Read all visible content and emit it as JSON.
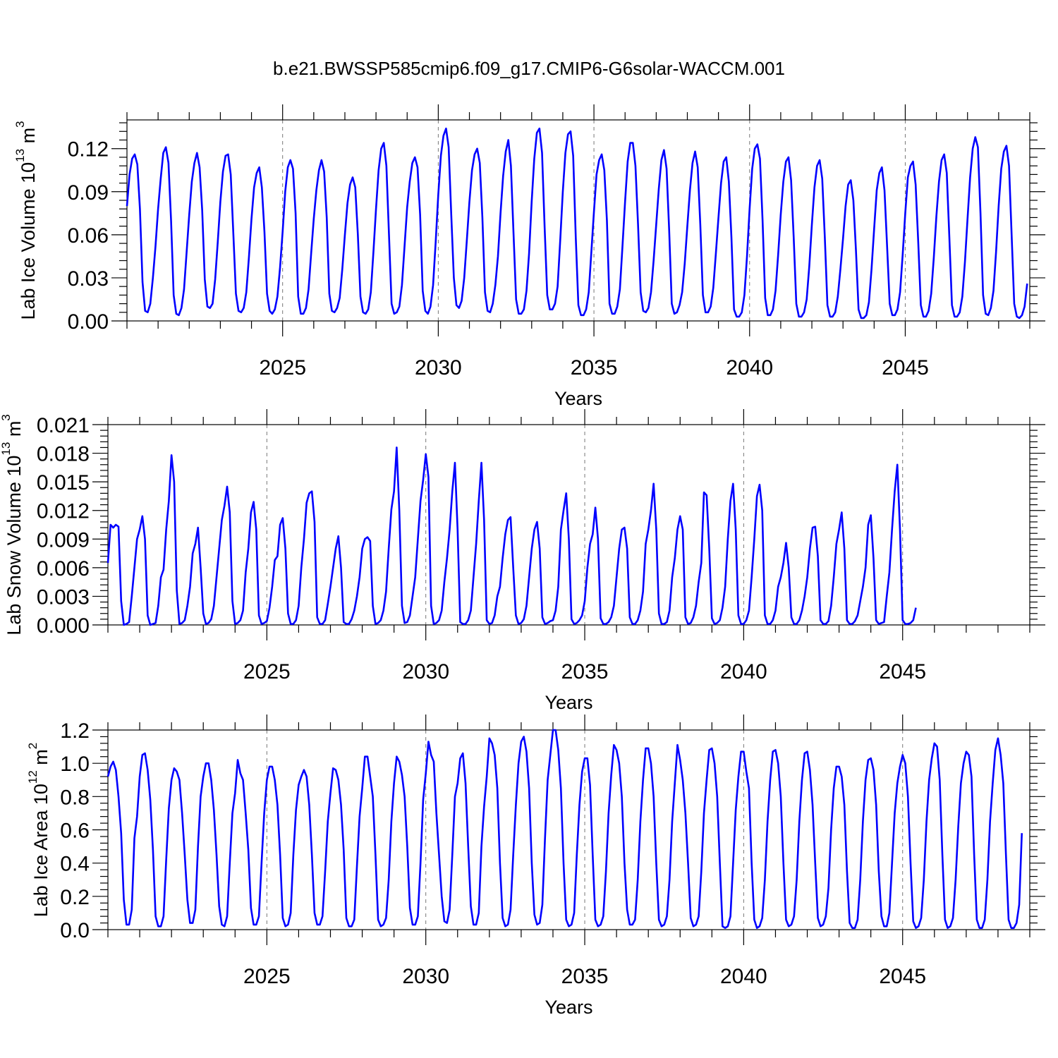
{
  "title": "b.e21.BWSSP585cmip6.f09_g17.CMIP6-G6solar-WACCM.001",
  "colors": {
    "series": "#0000ff",
    "axis": "#000000",
    "grid": "#777777"
  },
  "chart_data": [
    {
      "type": "line",
      "ylabel": "Lab Ice Volume 10^13 m^3",
      "ylabel_parts": {
        "main": "Lab Ice Volume 10",
        "exp": "13",
        "unit": " m",
        "unit_exp": "3"
      },
      "xlabel": "Years",
      "xlim": [
        2020.0,
        2049.0
      ],
      "ylim": [
        0,
        0.14
      ],
      "xticks": [
        2025,
        2030,
        2035,
        2040,
        2045
      ],
      "xtick_labels": [
        "2025",
        "2030",
        "2035",
        "2040",
        "2045"
      ],
      "yticks": [
        0.0,
        0.03,
        0.06,
        0.09,
        0.12
      ],
      "ytick_labels": [
        "0.00",
        "0.03",
        "0.06",
        "0.09",
        "0.12"
      ],
      "grid": "vertical dashed at major x ticks",
      "x_start": 2020.0,
      "x_step": 0.0833333,
      "values": [
        0.08,
        0.102,
        0.113,
        0.116,
        0.109,
        0.078,
        0.027,
        0.007,
        0.006,
        0.012,
        0.03,
        0.052,
        0.078,
        0.099,
        0.117,
        0.121,
        0.11,
        0.07,
        0.018,
        0.005,
        0.004,
        0.009,
        0.022,
        0.048,
        0.074,
        0.097,
        0.11,
        0.117,
        0.107,
        0.077,
        0.029,
        0.01,
        0.009,
        0.012,
        0.029,
        0.055,
        0.083,
        0.104,
        0.115,
        0.116,
        0.102,
        0.061,
        0.019,
        0.007,
        0.006,
        0.009,
        0.02,
        0.044,
        0.071,
        0.093,
        0.103,
        0.107,
        0.093,
        0.062,
        0.019,
        0.007,
        0.005,
        0.008,
        0.017,
        0.037,
        0.062,
        0.09,
        0.107,
        0.112,
        0.106,
        0.075,
        0.017,
        0.005,
        0.005,
        0.009,
        0.022,
        0.047,
        0.071,
        0.091,
        0.105,
        0.112,
        0.104,
        0.072,
        0.019,
        0.007,
        0.006,
        0.009,
        0.016,
        0.036,
        0.06,
        0.082,
        0.095,
        0.1,
        0.093,
        0.06,
        0.017,
        0.006,
        0.005,
        0.008,
        0.02,
        0.048,
        0.078,
        0.105,
        0.12,
        0.124,
        0.108,
        0.06,
        0.012,
        0.005,
        0.006,
        0.01,
        0.025,
        0.052,
        0.079,
        0.097,
        0.11,
        0.114,
        0.107,
        0.074,
        0.021,
        0.007,
        0.005,
        0.01,
        0.025,
        0.055,
        0.088,
        0.115,
        0.129,
        0.134,
        0.121,
        0.074,
        0.03,
        0.011,
        0.009,
        0.014,
        0.03,
        0.056,
        0.083,
        0.105,
        0.116,
        0.12,
        0.11,
        0.072,
        0.02,
        0.007,
        0.006,
        0.012,
        0.025,
        0.045,
        0.075,
        0.101,
        0.118,
        0.126,
        0.108,
        0.061,
        0.015,
        0.005,
        0.005,
        0.008,
        0.021,
        0.047,
        0.083,
        0.113,
        0.131,
        0.134,
        0.117,
        0.065,
        0.018,
        0.008,
        0.008,
        0.012,
        0.024,
        0.056,
        0.09,
        0.117,
        0.13,
        0.132,
        0.115,
        0.058,
        0.011,
        0.004,
        0.004,
        0.008,
        0.02,
        0.048,
        0.076,
        0.102,
        0.112,
        0.116,
        0.105,
        0.07,
        0.012,
        0.005,
        0.005,
        0.01,
        0.022,
        0.052,
        0.083,
        0.111,
        0.124,
        0.124,
        0.108,
        0.067,
        0.02,
        0.007,
        0.006,
        0.009,
        0.02,
        0.042,
        0.067,
        0.092,
        0.112,
        0.119,
        0.106,
        0.063,
        0.012,
        0.005,
        0.006,
        0.011,
        0.02,
        0.04,
        0.066,
        0.091,
        0.11,
        0.118,
        0.107,
        0.067,
        0.018,
        0.006,
        0.006,
        0.01,
        0.023,
        0.047,
        0.072,
        0.096,
        0.111,
        0.114,
        0.097,
        0.058,
        0.008,
        0.003,
        0.003,
        0.006,
        0.018,
        0.045,
        0.078,
        0.106,
        0.12,
        0.123,
        0.113,
        0.07,
        0.016,
        0.004,
        0.004,
        0.008,
        0.021,
        0.046,
        0.074,
        0.097,
        0.111,
        0.114,
        0.098,
        0.058,
        0.012,
        0.003,
        0.003,
        0.006,
        0.015,
        0.038,
        0.067,
        0.093,
        0.108,
        0.112,
        0.099,
        0.058,
        0.011,
        0.003,
        0.003,
        0.006,
        0.017,
        0.036,
        0.057,
        0.08,
        0.095,
        0.098,
        0.084,
        0.049,
        0.008,
        0.002,
        0.002,
        0.004,
        0.013,
        0.036,
        0.064,
        0.091,
        0.103,
        0.107,
        0.091,
        0.052,
        0.012,
        0.004,
        0.004,
        0.008,
        0.02,
        0.046,
        0.075,
        0.1,
        0.108,
        0.111,
        0.095,
        0.055,
        0.011,
        0.003,
        0.003,
        0.007,
        0.019,
        0.044,
        0.073,
        0.097,
        0.112,
        0.116,
        0.103,
        0.058,
        0.011,
        0.003,
        0.003,
        0.006,
        0.017,
        0.041,
        0.071,
        0.1,
        0.12,
        0.128,
        0.121,
        0.075,
        0.018,
        0.005,
        0.004,
        0.009,
        0.021,
        0.048,
        0.08,
        0.106,
        0.118,
        0.122,
        0.108,
        0.06,
        0.012,
        0.003,
        0.002,
        0.004,
        0.01,
        0.026
      ]
    },
    {
      "type": "line",
      "ylabel": "Lab Snow Volume 10^13 m^3",
      "ylabel_parts": {
        "main": "Lab Snow Volume 10",
        "exp": "13",
        "unit": " m",
        "unit_exp": "3"
      },
      "xlabel": "Years",
      "xlim": [
        2020.0,
        2049.0
      ],
      "ylim": [
        0,
        0.021
      ],
      "xticks": [
        2025,
        2030,
        2035,
        2040,
        2045
      ],
      "xtick_labels": [
        "2025",
        "2030",
        "2035",
        "2040",
        "2045"
      ],
      "yticks": [
        0.0,
        0.003,
        0.006,
        0.009,
        0.012,
        0.015,
        0.018,
        0.021
      ],
      "ytick_labels": [
        "0.000",
        "0.003",
        "0.006",
        "0.009",
        "0.012",
        "0.015",
        "0.018",
        "0.021"
      ],
      "grid": "vertical dashed at major x ticks",
      "x_start": 2020.0,
      "x_step": 0.0833333,
      "values": [
        0.0065,
        0.0105,
        0.0102,
        0.0105,
        0.0103,
        0.0025,
        0.0,
        0.0001,
        0.0003,
        0.003,
        0.006,
        0.009,
        0.01,
        0.0114,
        0.009,
        0.001,
        0.0,
        0.0001,
        0.0002,
        0.002,
        0.005,
        0.0058,
        0.01,
        0.013,
        0.0178,
        0.015,
        0.0036,
        0.0001,
        0.0002,
        0.0005,
        0.002,
        0.004,
        0.0075,
        0.0085,
        0.0102,
        0.006,
        0.0012,
        0.0001,
        0.0002,
        0.0006,
        0.002,
        0.005,
        0.008,
        0.011,
        0.0125,
        0.0145,
        0.0118,
        0.0025,
        0.0001,
        0.0002,
        0.0005,
        0.0015,
        0.0055,
        0.008,
        0.0118,
        0.0129,
        0.01,
        0.001,
        0.0001,
        0.0002,
        0.0004,
        0.0018,
        0.004,
        0.0068,
        0.0072,
        0.0105,
        0.0112,
        0.008,
        0.0012,
        0.0001,
        0.0001,
        0.0005,
        0.002,
        0.006,
        0.009,
        0.0128,
        0.0138,
        0.014,
        0.0108,
        0.0008,
        0.0001,
        0.0001,
        0.0005,
        0.0022,
        0.004,
        0.006,
        0.008,
        0.0093,
        0.006,
        0.0003,
        0.0001,
        0.0001,
        0.0006,
        0.0015,
        0.003,
        0.005,
        0.008,
        0.009,
        0.0092,
        0.0088,
        0.002,
        0.0001,
        0.0002,
        0.0005,
        0.0015,
        0.0035,
        0.008,
        0.0121,
        0.014,
        0.0186,
        0.012,
        0.002,
        0.0002,
        0.0003,
        0.001,
        0.003,
        0.005,
        0.009,
        0.013,
        0.0152,
        0.0179,
        0.0155,
        0.002,
        0.0001,
        0.0002,
        0.0005,
        0.0015,
        0.0045,
        0.007,
        0.01,
        0.014,
        0.017,
        0.01,
        0.0003,
        0.0001,
        0.0001,
        0.0005,
        0.0015,
        0.005,
        0.0085,
        0.013,
        0.017,
        0.011,
        0.0005,
        0.0001,
        0.0002,
        0.001,
        0.003,
        0.004,
        0.007,
        0.0095,
        0.011,
        0.0113,
        0.006,
        0.001,
        0.0001,
        0.0002,
        0.0006,
        0.002,
        0.005,
        0.008,
        0.01,
        0.0108,
        0.008,
        0.0008,
        0.0001,
        0.0002,
        0.0004,
        0.0005,
        0.0015,
        0.004,
        0.01,
        0.012,
        0.0138,
        0.009,
        0.0006,
        0.0001,
        0.0002,
        0.0005,
        0.001,
        0.0025,
        0.006,
        0.0085,
        0.0095,
        0.0123,
        0.009,
        0.0007,
        0.0001,
        0.0001,
        0.0003,
        0.0008,
        0.002,
        0.005,
        0.008,
        0.01,
        0.0102,
        0.008,
        0.0008,
        0.0001,
        0.0001,
        0.0005,
        0.0015,
        0.0035,
        0.0085,
        0.01,
        0.012,
        0.0148,
        0.01,
        0.0012,
        0.0001,
        0.0001,
        0.0003,
        0.0015,
        0.005,
        0.007,
        0.01,
        0.0114,
        0.01,
        0.0008,
        0.0001,
        0.0002,
        0.0008,
        0.002,
        0.0045,
        0.0065,
        0.0139,
        0.0136,
        0.008,
        0.0007,
        0.0001,
        0.0002,
        0.0005,
        0.0018,
        0.004,
        0.009,
        0.013,
        0.0148,
        0.01,
        0.001,
        0.0001,
        0.0001,
        0.0005,
        0.0015,
        0.005,
        0.009,
        0.0135,
        0.0147,
        0.012,
        0.001,
        0.0001,
        0.0001,
        0.0005,
        0.0015,
        0.004,
        0.005,
        0.0065,
        0.0086,
        0.006,
        0.0008,
        0.0001,
        0.0001,
        0.0005,
        0.0015,
        0.003,
        0.005,
        0.008,
        0.0102,
        0.0103,
        0.0072,
        0.0005,
        0.0001,
        0.0001,
        0.0004,
        0.002,
        0.005,
        0.0085,
        0.01,
        0.0118,
        0.008,
        0.0005,
        0.0001,
        0.0001,
        0.0004,
        0.001,
        0.0025,
        0.004,
        0.006,
        0.0105,
        0.0115,
        0.007,
        0.0005,
        0.0001,
        0.0002,
        0.0003,
        0.003,
        0.0055,
        0.01,
        0.014,
        0.0168,
        0.01,
        0.0005,
        0.0001,
        0.0001,
        0.0002,
        0.0005,
        0.0018
      ]
    },
    {
      "type": "line",
      "ylabel": "Lab Ice Area 10^12 m^2",
      "ylabel_parts": {
        "main": "Lab Ice Area 10",
        "exp": "12",
        "unit": " m",
        "unit_exp": "2"
      },
      "xlabel": "Years",
      "xlim": [
        2020.0,
        2049.0
      ],
      "ylim": [
        0,
        1.2
      ],
      "xticks": [
        2025,
        2030,
        2035,
        2040,
        2045
      ],
      "xtick_labels": [
        "2025",
        "2030",
        "2035",
        "2040",
        "2045"
      ],
      "yticks": [
        0.0,
        0.2,
        0.4,
        0.6,
        0.8,
        1.0,
        1.2
      ],
      "ytick_labels": [
        "0.0",
        "0.2",
        "0.4",
        "0.6",
        "0.8",
        "1.0",
        "1.2"
      ],
      "grid": "vertical dashed at major x ticks",
      "x_start": 2020.0,
      "x_step": 0.0833333,
      "values": [
        0.92,
        0.98,
        1.01,
        0.96,
        0.8,
        0.58,
        0.18,
        0.03,
        0.03,
        0.12,
        0.55,
        0.68,
        0.92,
        1.05,
        1.06,
        0.96,
        0.78,
        0.48,
        0.08,
        0.02,
        0.02,
        0.08,
        0.42,
        0.73,
        0.9,
        0.97,
        0.95,
        0.9,
        0.7,
        0.45,
        0.18,
        0.04,
        0.04,
        0.12,
        0.5,
        0.8,
        0.92,
        1.0,
        1.0,
        0.9,
        0.72,
        0.45,
        0.14,
        0.03,
        0.02,
        0.08,
        0.4,
        0.7,
        0.82,
        1.02,
        0.94,
        0.9,
        0.7,
        0.48,
        0.13,
        0.03,
        0.03,
        0.08,
        0.4,
        0.7,
        0.9,
        0.98,
        0.98,
        0.9,
        0.75,
        0.45,
        0.07,
        0.02,
        0.03,
        0.1,
        0.45,
        0.72,
        0.87,
        0.92,
        0.96,
        0.92,
        0.75,
        0.45,
        0.1,
        0.03,
        0.03,
        0.08,
        0.35,
        0.65,
        0.82,
        0.97,
        0.96,
        0.9,
        0.75,
        0.48,
        0.07,
        0.02,
        0.02,
        0.06,
        0.38,
        0.68,
        0.85,
        1.04,
        1.04,
        0.92,
        0.8,
        0.45,
        0.06,
        0.02,
        0.03,
        0.07,
        0.3,
        0.65,
        0.88,
        1.04,
        1.01,
        0.93,
        0.8,
        0.5,
        0.13,
        0.03,
        0.03,
        0.08,
        0.4,
        0.78,
        0.94,
        1.13,
        1.05,
        1.01,
        0.7,
        0.45,
        0.2,
        0.05,
        0.04,
        0.12,
        0.45,
        0.8,
        0.88,
        1.03,
        1.06,
        0.88,
        0.5,
        0.14,
        0.03,
        0.03,
        0.1,
        0.5,
        0.74,
        0.92,
        1.15,
        1.12,
        1.05,
        0.85,
        0.4,
        0.07,
        0.02,
        0.03,
        0.12,
        0.45,
        0.75,
        1.0,
        1.13,
        1.16,
        1.07,
        0.85,
        0.4,
        0.09,
        0.03,
        0.04,
        0.15,
        0.55,
        0.9,
        1.05,
        1.2,
        1.2,
        1.08,
        0.85,
        0.4,
        0.06,
        0.02,
        0.03,
        0.1,
        0.45,
        0.75,
        0.95,
        1.03,
        1.03,
        0.87,
        0.45,
        0.06,
        0.02,
        0.03,
        0.08,
        0.35,
        0.7,
        0.93,
        1.11,
        1.08,
        1.0,
        0.8,
        0.4,
        0.12,
        0.03,
        0.03,
        0.06,
        0.3,
        0.65,
        0.9,
        1.09,
        1.09,
        1.0,
        0.8,
        0.4,
        0.06,
        0.02,
        0.03,
        0.08,
        0.3,
        0.65,
        0.88,
        1.11,
        1.02,
        0.9,
        0.7,
        0.4,
        0.07,
        0.02,
        0.03,
        0.08,
        0.35,
        0.7,
        0.9,
        1.08,
        1.09,
        1.0,
        0.8,
        0.4,
        0.02,
        0.01,
        0.02,
        0.08,
        0.4,
        0.72,
        0.92,
        1.07,
        1.07,
        0.95,
        0.85,
        0.4,
        0.06,
        0.01,
        0.02,
        0.07,
        0.3,
        0.65,
        0.9,
        1.07,
        1.08,
        1.0,
        0.8,
        0.4,
        0.06,
        0.02,
        0.03,
        0.08,
        0.3,
        0.65,
        0.9,
        1.06,
        1.07,
        0.96,
        0.75,
        0.4,
        0.07,
        0.02,
        0.03,
        0.08,
        0.25,
        0.6,
        0.85,
        0.98,
        0.98,
        0.92,
        0.75,
        0.35,
        0.04,
        0.01,
        0.01,
        0.06,
        0.3,
        0.65,
        0.9,
        1.02,
        1.03,
        0.96,
        0.75,
        0.35,
        0.08,
        0.02,
        0.02,
        0.1,
        0.4,
        0.7,
        0.88,
        0.98,
        1.05,
        1.0,
        0.8,
        0.4,
        0.05,
        0.01,
        0.02,
        0.07,
        0.3,
        0.65,
        0.9,
        1.03,
        1.12,
        1.1,
        0.9,
        0.45,
        0.06,
        0.01,
        0.02,
        0.07,
        0.3,
        0.62,
        0.88,
        1.0,
        1.07,
        1.05,
        0.92,
        0.45,
        0.06,
        0.01,
        0.01,
        0.06,
        0.3,
        0.65,
        0.88,
        1.08,
        1.15,
        1.05,
        0.88,
        0.45,
        0.06,
        0.01,
        0.01,
        0.04,
        0.15,
        0.58
      ]
    }
  ]
}
